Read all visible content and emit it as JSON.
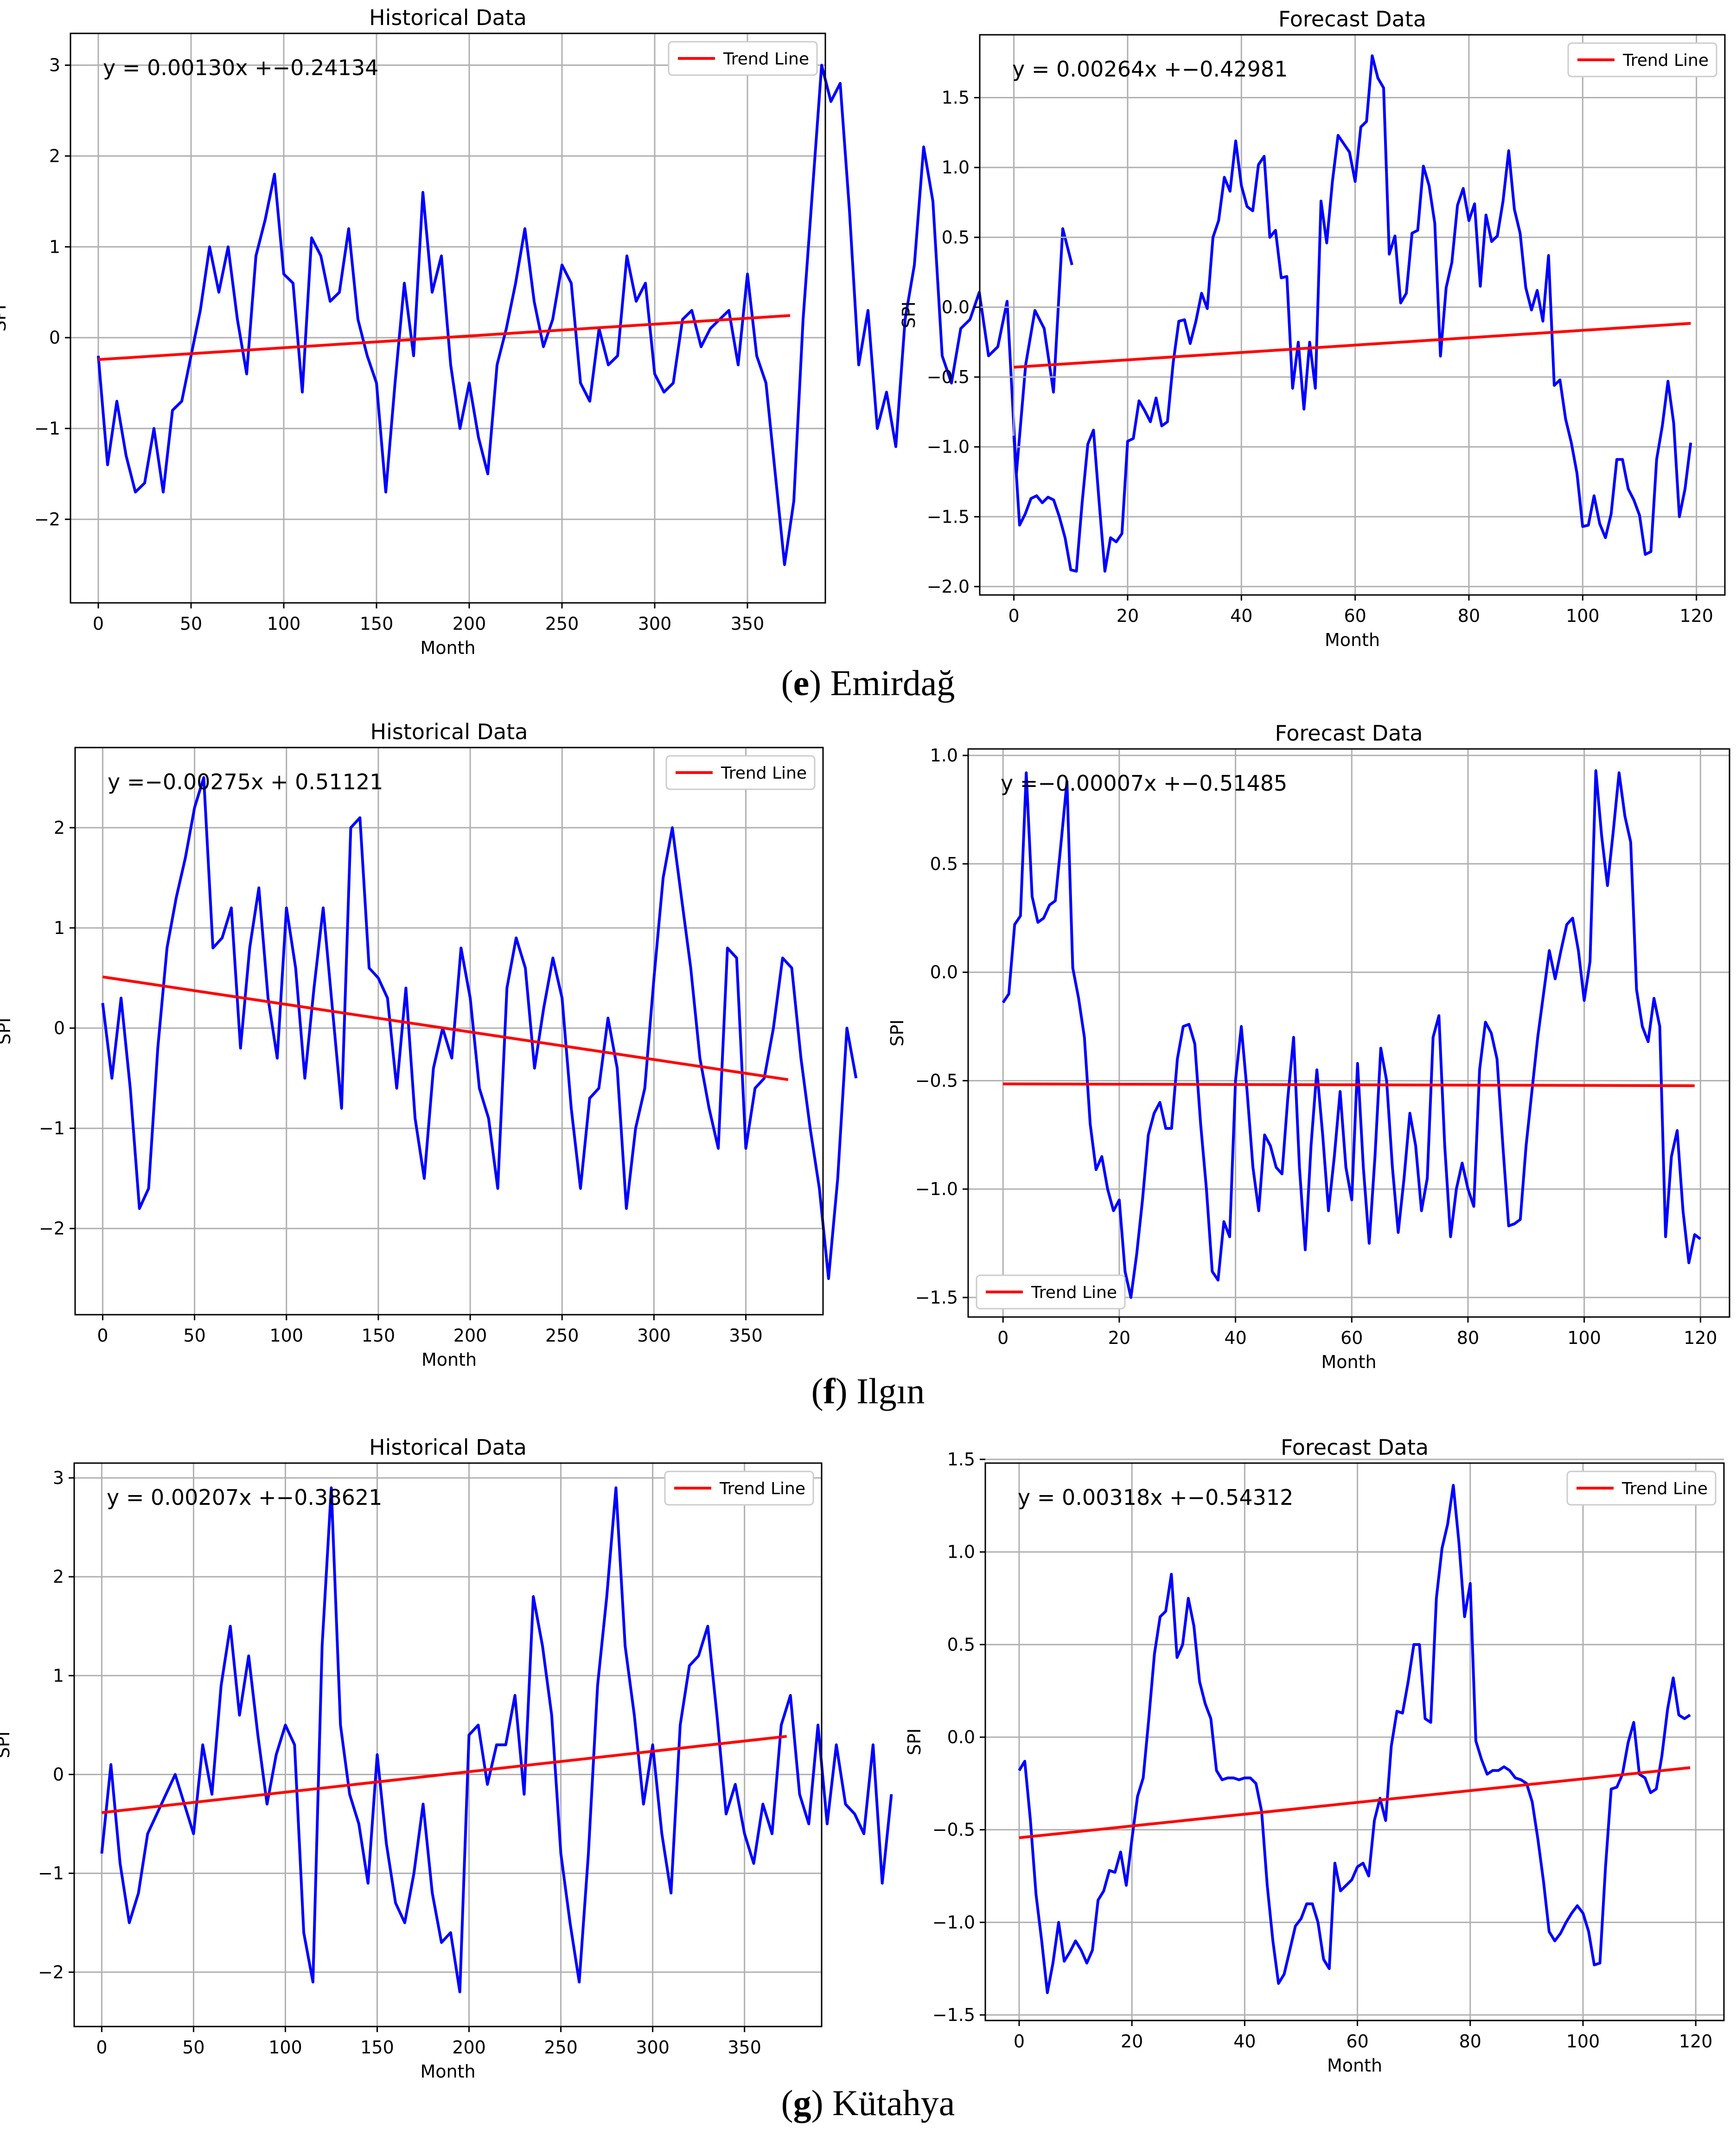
{
  "captions": [
    {
      "letter": "e",
      "name": "Emirdağ"
    },
    {
      "letter": "f",
      "name": "Ilgın"
    },
    {
      "letter": "g",
      "name": "Kütahya"
    }
  ],
  "colors": {
    "series": "#0000ff",
    "trend": "#ff0000",
    "grid": "#b0b0b0",
    "axis": "#000000"
  },
  "chart_data": [
    {
      "type": "line",
      "title": "Historical Data",
      "xlabel": "Month",
      "ylabel": "SPI",
      "xlim": [
        -15,
        392
      ],
      "ylim": [
        -2.92,
        3.35
      ],
      "xticks": [
        0,
        50,
        100,
        150,
        200,
        250,
        300,
        350
      ],
      "yticks": [
        -2,
        -1,
        0,
        1,
        2,
        3
      ],
      "ytick_labels": [
        "−2",
        "−1",
        "0",
        "1",
        "2",
        "3"
      ],
      "equation": "y = 0.00130x +−0.24134",
      "legend": {
        "label": "Trend Line",
        "loc": "upper right"
      },
      "trend": {
        "x": [
          0,
          373
        ],
        "y": [
          -0.24134,
          0.24356
        ]
      },
      "series": [
        {
          "name": "SPI",
          "x_step": 5,
          "values": [
            -0.2,
            -1.4,
            -0.7,
            -1.3,
            -1.7,
            -1.6,
            -1.0,
            -1.7,
            -0.8,
            -0.7,
            -0.2,
            0.3,
            1.0,
            0.5,
            1.0,
            0.2,
            -0.4,
            0.9,
            1.3,
            1.8,
            0.7,
            0.6,
            -0.6,
            1.1,
            0.9,
            0.4,
            0.5,
            1.2,
            0.2,
            -0.2,
            -0.5,
            -1.7,
            -0.5,
            0.6,
            -0.2,
            1.6,
            0.5,
            0.9,
            -0.3,
            -1.0,
            -0.5,
            -1.1,
            -1.5,
            -0.3,
            0.1,
            0.6,
            1.2,
            0.4,
            -0.1,
            0.2,
            0.8,
            0.6,
            -0.5,
            -0.7,
            0.1,
            -0.3,
            -0.2,
            0.9,
            0.4,
            0.6,
            -0.4,
            -0.6,
            -0.5,
            0.2,
            0.3,
            -0.1,
            0.1,
            0.2,
            0.3,
            -0.3,
            0.7,
            -0.2,
            -0.5,
            -1.5,
            -2.5,
            -1.8,
            0.2,
            1.6,
            3.0,
            2.6,
            2.8,
            1.4,
            -0.3,
            0.3,
            -1.0,
            -0.6,
            -1.2,
            0.2,
            0.8,
            2.1,
            1.5,
            -0.2,
            -0.5,
            0.1,
            0.2,
            0.5,
            -0.2,
            -0.1,
            0.4,
            -1.5,
            -0.3,
            0.3,
            0.1,
            -0.6,
            1.2,
            0.8
          ]
        }
      ]
    },
    {
      "type": "line",
      "title": "Forecast Data",
      "xlabel": "Month",
      "ylabel": "SPI",
      "xlim": [
        -6,
        125
      ],
      "ylim": [
        -2.06,
        1.95
      ],
      "xticks": [
        0,
        20,
        40,
        60,
        80,
        100,
        120
      ],
      "yticks": [
        -2.0,
        -1.5,
        -1.0,
        -0.5,
        0.0,
        0.5,
        1.0,
        1.5
      ],
      "ytick_labels": [
        "−2.0",
        "−1.5",
        "−1.0",
        "−0.5",
        "0.0",
        "0.5",
        "1.0",
        "1.5"
      ],
      "equation": "y = 0.00264x +−0.42981",
      "legend": {
        "label": "Trend Line",
        "loc": "upper right"
      },
      "trend": {
        "x": [
          0,
          119
        ],
        "y": [
          -0.42981,
          -0.11565
        ]
      },
      "series": [
        {
          "name": "SPI",
          "x_step": 1,
          "values": [
            -0.92,
            -1.56,
            -1.48,
            -1.37,
            -1.35,
            -1.4,
            -1.36,
            -1.38,
            -1.5,
            -1.65,
            -1.88,
            -1.89,
            -1.4,
            -0.98,
            -0.88,
            -1.4,
            -1.89,
            -1.65,
            -1.68,
            -1.62,
            -0.96,
            -0.94,
            -0.67,
            -0.74,
            -0.82,
            -0.65,
            -0.85,
            -0.82,
            -0.4,
            -0.1,
            -0.09,
            -0.26,
            -0.1,
            0.1,
            -0.01,
            0.5,
            0.62,
            0.93,
            0.83,
            1.19,
            0.87,
            0.72,
            0.69,
            1.02,
            1.08,
            0.5,
            0.55,
            0.21,
            0.22,
            -0.58,
            -0.25,
            -0.73,
            -0.25,
            -0.58,
            0.76,
            0.46,
            0.9,
            1.23,
            1.17,
            1.11,
            0.9,
            1.29,
            1.33,
            1.8,
            1.64,
            1.57,
            0.38,
            0.51,
            0.03,
            0.1,
            0.53,
            0.55,
            1.01,
            0.87,
            0.6,
            -0.35,
            0.14,
            0.32,
            0.73,
            0.85,
            0.62,
            0.74,
            0.15,
            0.66,
            0.47,
            0.51,
            0.76,
            1.12,
            0.7,
            0.53,
            0.14,
            -0.02,
            0.12,
            -0.1,
            0.37,
            -0.56,
            -0.52,
            -0.8,
            -0.97,
            -1.19,
            -1.57,
            -1.56,
            -1.35,
            -1.55,
            -1.65,
            -1.48,
            -1.09,
            -1.09,
            -1.3,
            -1.38,
            -1.49,
            -1.77,
            -1.75,
            -1.09,
            -0.85,
            -0.53,
            -0.83,
            -1.5,
            -1.3,
            -0.97
          ]
        }
      ]
    },
    {
      "type": "line",
      "title": "Historical Data",
      "xlabel": "Month",
      "ylabel": "SPI",
      "xlim": [
        -15,
        392
      ],
      "ylim": [
        -2.86,
        2.8
      ],
      "xticks": [
        0,
        50,
        100,
        150,
        200,
        250,
        300,
        350
      ],
      "yticks": [
        -2,
        -1,
        0,
        1,
        2
      ],
      "ytick_labels": [
        "−2",
        "−1",
        "0",
        "1",
        "2"
      ],
      "equation": "y =−0.00275x + 0.51121",
      "legend": {
        "label": "Trend Line",
        "loc": "upper right"
      },
      "trend": {
        "x": [
          0,
          373
        ],
        "y": [
          0.51121,
          -0.51454
        ]
      },
      "series": [
        {
          "name": "SPI",
          "x_step": 5,
          "values": [
            0.25,
            -0.5,
            0.3,
            -0.6,
            -1.8,
            -1.6,
            -0.2,
            0.8,
            1.3,
            1.7,
            2.2,
            2.5,
            0.8,
            0.9,
            1.2,
            -0.2,
            0.8,
            1.4,
            0.3,
            -0.3,
            1.2,
            0.6,
            -0.5,
            0.4,
            1.2,
            0.2,
            -0.8,
            2.0,
            2.1,
            0.6,
            0.5,
            0.3,
            -0.6,
            0.4,
            -0.9,
            -1.5,
            -0.4,
            0.0,
            -0.3,
            0.8,
            0.3,
            -0.6,
            -0.9,
            -1.6,
            0.4,
            0.9,
            0.6,
            -0.4,
            0.2,
            0.7,
            0.3,
            -0.8,
            -1.6,
            -0.7,
            -0.6,
            0.1,
            -0.4,
            -1.8,
            -1.0,
            -0.6,
            0.5,
            1.5,
            2.0,
            1.3,
            0.6,
            -0.3,
            -0.8,
            -1.2,
            0.8,
            0.7,
            -1.2,
            -0.6,
            -0.5,
            0.0,
            0.7,
            0.6,
            -0.3,
            -1.0,
            -1.6,
            -2.5,
            -1.5,
            0.0,
            -0.5
          ]
        }
      ]
    },
    {
      "type": "line",
      "title": "Forecast Data",
      "xlabel": "Month",
      "ylabel": "SPI",
      "xlim": [
        -6,
        125
      ],
      "ylim": [
        -1.59,
        1.03
      ],
      "xticks": [
        0,
        20,
        40,
        60,
        80,
        100,
        120
      ],
      "yticks": [
        -1.5,
        -1.0,
        -0.5,
        0.0,
        0.5,
        1.0
      ],
      "ytick_labels": [
        "−1.5",
        "−1.0",
        "−0.5",
        "0.0",
        "0.5",
        "1.0"
      ],
      "equation": "y =−0.00007x +−0.51485",
      "legend": {
        "label": "Trend Line",
        "loc": "lower left"
      },
      "trend": {
        "x": [
          0,
          119
        ],
        "y": [
          -0.51485,
          -0.52318
        ]
      },
      "series": [
        {
          "name": "SPI",
          "x_step": 1,
          "values": [
            -0.14,
            -0.1,
            0.22,
            0.26,
            0.92,
            0.35,
            0.23,
            0.25,
            0.31,
            0.33,
            0.6,
            0.88,
            0.02,
            -0.12,
            -0.3,
            -0.7,
            -0.91,
            -0.85,
            -1.0,
            -1.1,
            -1.05,
            -1.38,
            -1.5,
            -1.3,
            -1.05,
            -0.75,
            -0.65,
            -0.6,
            -0.72,
            -0.72,
            -0.4,
            -0.25,
            -0.24,
            -0.33,
            -0.7,
            -1.0,
            -1.38,
            -1.42,
            -1.15,
            -1.22,
            -0.5,
            -0.25,
            -0.55,
            -0.9,
            -1.1,
            -0.75,
            -0.8,
            -0.9,
            -0.93,
            -0.58,
            -0.3,
            -0.9,
            -1.28,
            -0.8,
            -0.45,
            -0.75,
            -1.1,
            -0.85,
            -0.55,
            -0.9,
            -1.05,
            -0.42,
            -0.9,
            -1.25,
            -0.85,
            -0.35,
            -0.5,
            -0.9,
            -1.2,
            -0.95,
            -0.65,
            -0.8,
            -1.1,
            -0.95,
            -0.3,
            -0.2,
            -0.8,
            -1.22,
            -1.0,
            -0.88,
            -1.0,
            -1.08,
            -0.45,
            -0.23,
            -0.28,
            -0.4,
            -0.8,
            -1.17,
            -1.16,
            -1.14,
            -0.8,
            -0.55,
            -0.3,
            -0.1,
            0.1,
            -0.03,
            0.1,
            0.22,
            0.25,
            0.1,
            -0.13,
            0.05,
            0.93,
            0.63,
            0.4,
            0.65,
            0.92,
            0.72,
            0.6,
            -0.08,
            -0.25,
            -0.32,
            -0.12,
            -0.25,
            -1.22,
            -0.85,
            -0.73,
            -1.1,
            -1.34,
            -1.21,
            -1.23
          ]
        }
      ]
    },
    {
      "type": "line",
      "title": "Historical Data",
      "xlabel": "Month",
      "ylabel": "SPI",
      "xlim": [
        -15,
        392
      ],
      "ylim": [
        -2.55,
        3.15
      ],
      "xticks": [
        0,
        50,
        100,
        150,
        200,
        250,
        300,
        350
      ],
      "yticks": [
        -2,
        -1,
        0,
        1,
        2,
        3
      ],
      "ytick_labels": [
        "−2",
        "−1",
        "0",
        "1",
        "2",
        "3"
      ],
      "equation": "y = 0.00207x +−0.38621",
      "legend": {
        "label": "Trend Line",
        "loc": "upper right"
      },
      "trend": {
        "x": [
          0,
          373
        ],
        "y": [
          -0.38621,
          0.3859
        ]
      },
      "series": [
        {
          "name": "SPI",
          "x_step": 5,
          "values": [
            -0.8,
            0.1,
            -0.9,
            -1.5,
            -1.2,
            -0.6,
            -0.4,
            -0.2,
            0.0,
            -0.3,
            -0.6,
            0.3,
            -0.2,
            0.9,
            1.5,
            0.6,
            1.2,
            0.4,
            -0.3,
            0.2,
            0.5,
            0.3,
            -1.6,
            -2.1,
            1.3,
            2.9,
            0.5,
            -0.2,
            -0.5,
            -1.1,
            0.2,
            -0.7,
            -1.3,
            -1.5,
            -1.0,
            -0.3,
            -1.2,
            -1.7,
            -1.6,
            -2.2,
            0.4,
            0.5,
            -0.1,
            0.3,
            0.3,
            0.8,
            -0.2,
            1.8,
            1.3,
            0.6,
            -0.8,
            -1.5,
            -2.1,
            -0.8,
            0.9,
            1.8,
            2.9,
            1.3,
            0.6,
            -0.3,
            0.3,
            -0.6,
            -1.2,
            0.5,
            1.1,
            1.2,
            1.5,
            0.6,
            -0.4,
            -0.1,
            -0.6,
            -0.9,
            -0.3,
            -0.6,
            0.5,
            0.8,
            -0.2,
            -0.5,
            0.5,
            -0.5,
            0.3,
            -0.3,
            -0.4,
            -0.6,
            0.3,
            -1.1,
            -0.2
          ]
        }
      ]
    },
    {
      "type": "line",
      "title": "Forecast Data",
      "xlabel": "Month",
      "ylabel": "SPI",
      "xlim": [
        -6,
        125
      ],
      "ylim": [
        -1.53,
        1.48
      ],
      "xticks": [
        0,
        20,
        40,
        60,
        80,
        100,
        120
      ],
      "yticks": [
        -1.5,
        -1.0,
        -0.5,
        0.0,
        0.5,
        1.0,
        1.5
      ],
      "ytick_labels": [
        "−1.5",
        "−1.0",
        "−0.5",
        "0.0",
        "0.5",
        "1.0",
        "1.5"
      ],
      "equation": "y = 0.00318x +−0.54312",
      "legend": {
        "label": "Trend Line",
        "loc": "upper right"
      },
      "trend": {
        "x": [
          0,
          119
        ],
        "y": [
          -0.54312,
          -0.1647
        ]
      },
      "series": [
        {
          "name": "SPI",
          "x_step": 1,
          "values": [
            -0.18,
            -0.13,
            -0.45,
            -0.85,
            -1.1,
            -1.38,
            -1.22,
            -1.0,
            -1.21,
            -1.16,
            -1.1,
            -1.15,
            -1.22,
            -1.15,
            -0.88,
            -0.83,
            -0.72,
            -0.73,
            -0.62,
            -0.8,
            -0.55,
            -0.32,
            -0.22,
            0.1,
            0.45,
            0.65,
            0.68,
            0.88,
            0.43,
            0.5,
            0.75,
            0.6,
            0.3,
            0.18,
            0.1,
            -0.18,
            -0.23,
            -0.22,
            -0.22,
            -0.23,
            -0.22,
            -0.22,
            -0.25,
            -0.4,
            -0.8,
            -1.1,
            -1.33,
            -1.28,
            -1.15,
            -1.02,
            -0.98,
            -0.9,
            -0.9,
            -1.0,
            -1.2,
            -1.25,
            -0.68,
            -0.83,
            -0.8,
            -0.77,
            -0.7,
            -0.68,
            -0.75,
            -0.45,
            -0.33,
            -0.45,
            -0.05,
            0.14,
            0.13,
            0.3,
            0.5,
            0.5,
            0.1,
            0.08,
            0.75,
            1.02,
            1.15,
            1.36,
            1.05,
            0.65,
            0.83,
            -0.02,
            -0.12,
            -0.2,
            -0.18,
            -0.18,
            -0.16,
            -0.18,
            -0.22,
            -0.23,
            -0.25,
            -0.35,
            -0.55,
            -0.78,
            -1.05,
            -1.1,
            -1.06,
            -1.0,
            -0.95,
            -0.91,
            -0.95,
            -1.05,
            -1.23,
            -1.22,
            -0.7,
            -0.28,
            -0.27,
            -0.2,
            -0.03,
            0.08,
            -0.2,
            -0.22,
            -0.3,
            -0.28,
            -0.1,
            0.15,
            0.32,
            0.12,
            0.1,
            0.12
          ]
        }
      ]
    }
  ]
}
